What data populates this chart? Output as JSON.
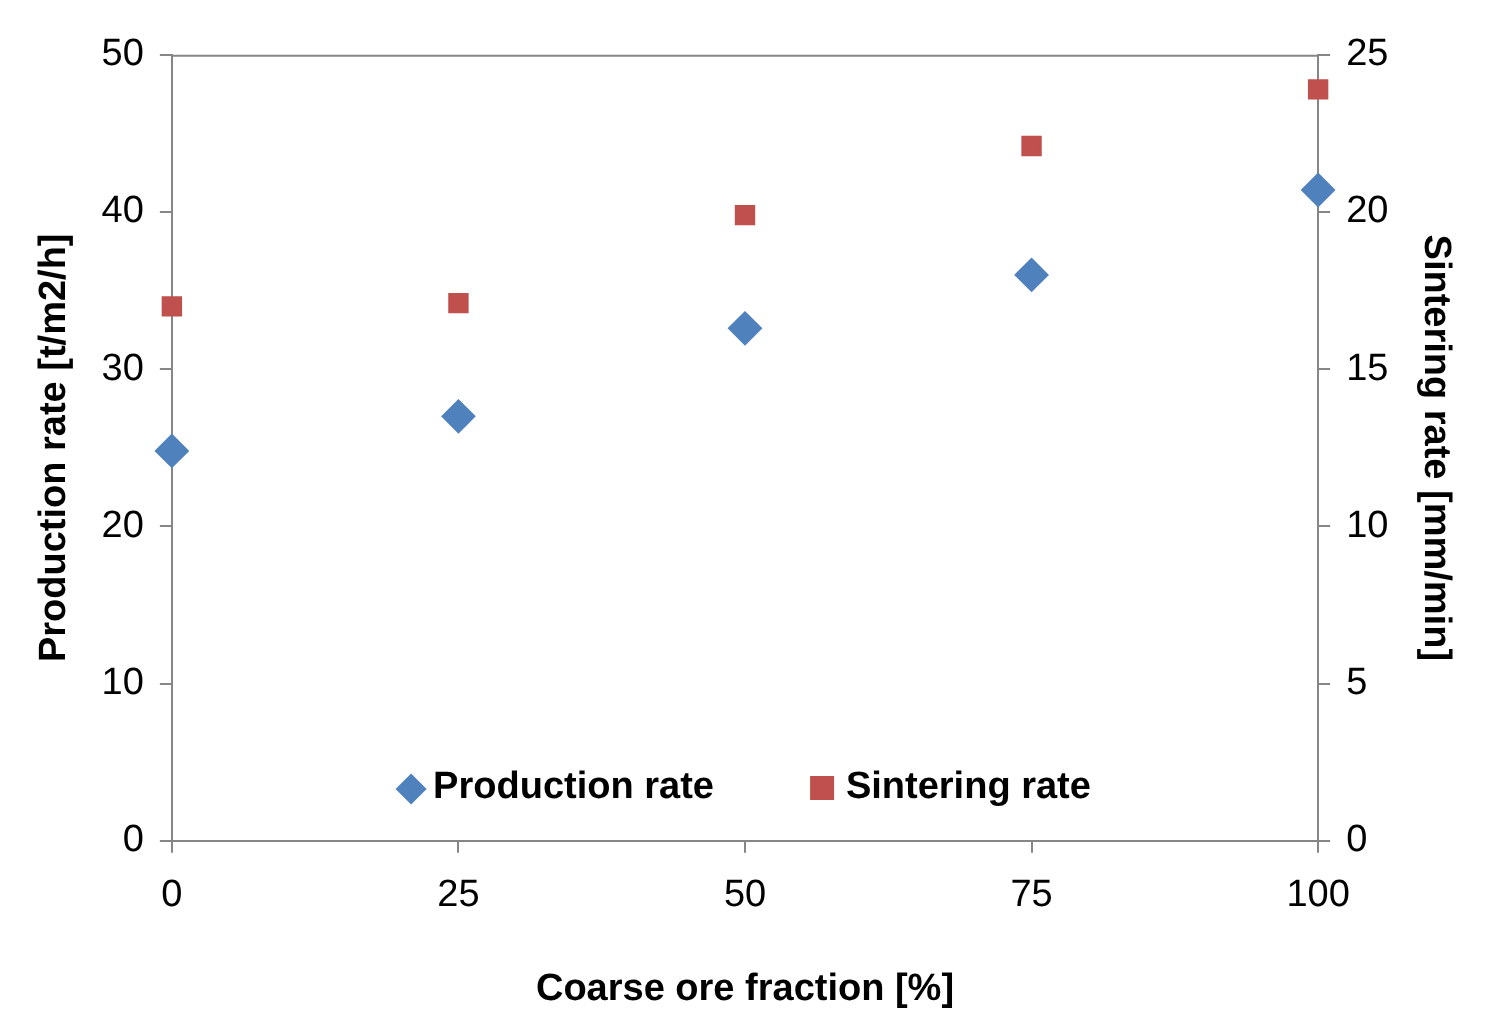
{
  "chart_data": {
    "type": "scatter",
    "xlabel": "Coarse ore fraction [%]",
    "ylabel": "Production rate [t/m2/h]",
    "y2label": "Sintering rate [mm/min]",
    "x": [
      0,
      25,
      50,
      75,
      100
    ],
    "series": [
      {
        "name": "Production rate",
        "color": "#4f81bd",
        "marker": "diamond",
        "values": [
          24.8,
          27.0,
          32.6,
          36.0,
          41.4
        ]
      },
      {
        "name": "Sintering rate",
        "color": "#c0504d",
        "marker": "square",
        "axis": "y2",
        "values": [
          17.0,
          17.1,
          19.9,
          22.1,
          23.9
        ]
      }
    ],
    "xlim": [
      0,
      100
    ],
    "xticks": [
      0,
      25,
      50,
      75,
      100
    ],
    "ylim": [
      0,
      50
    ],
    "yticks": [
      0,
      10,
      20,
      30,
      40,
      50
    ],
    "y2lim": [
      0,
      25
    ],
    "y2ticks": [
      0,
      5,
      10,
      15,
      20,
      25
    ],
    "grid": false,
    "legend": "bottom"
  }
}
